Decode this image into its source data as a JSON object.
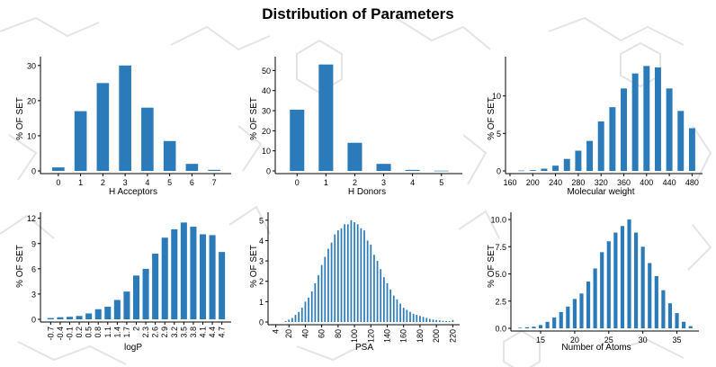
{
  "title": "Distribution of Parameters",
  "colors": {
    "bar": "#2b7bba",
    "axis": "#000000",
    "background_motif": "#e2e2e2"
  },
  "chart_data": [
    {
      "type": "bar",
      "xlabel": "H Acceptors",
      "ylabel": "% OF SET",
      "x": [
        0,
        1,
        2,
        3,
        4,
        5,
        6,
        7
      ],
      "values": [
        1,
        17,
        25,
        30,
        18,
        8.5,
        2,
        0.3
      ],
      "ylim": [
        0,
        32
      ],
      "yticks": [
        0,
        10,
        20,
        30
      ],
      "xticks": [
        0,
        1,
        2,
        3,
        4,
        5,
        6,
        7
      ],
      "xlim": [
        -0.6,
        7.6
      ],
      "barw": 0.55,
      "xtick_rotate": false,
      "grid": false
    },
    {
      "type": "bar",
      "xlabel": "H Donors",
      "ylabel": "% OF SET",
      "x": [
        0,
        1,
        2,
        3,
        4,
        5
      ],
      "values": [
        30.5,
        53,
        14,
        3.5,
        0.5,
        0.1
      ],
      "ylim": [
        0,
        56
      ],
      "yticks": [
        0,
        10,
        20,
        30,
        40,
        50
      ],
      "xticks": [
        0,
        1,
        2,
        3,
        4,
        5
      ],
      "xlim": [
        -0.6,
        5.6
      ],
      "barw": 0.5,
      "xtick_rotate": false,
      "grid": false
    },
    {
      "type": "bar",
      "xlabel": "Molecular weight",
      "ylabel": "% OF SET",
      "x": [
        180,
        200,
        220,
        240,
        260,
        280,
        300,
        320,
        340,
        360,
        380,
        400,
        420,
        440,
        460,
        480
      ],
      "values": [
        0.05,
        0.1,
        0.3,
        0.7,
        1.6,
        2.7,
        4.0,
        6.6,
        8.5,
        11,
        13,
        14,
        13.8,
        11,
        8,
        5.7
      ],
      "ylim": [
        0,
        15
      ],
      "yticks": [
        0,
        5,
        10
      ],
      "xticks": [
        160,
        200,
        240,
        280,
        320,
        360,
        400,
        440,
        480
      ],
      "xlim": [
        160,
        492
      ],
      "barw": 11,
      "xtick_rotate": false,
      "grid": false
    },
    {
      "type": "bar",
      "xlabel": "logP",
      "ylabel": "% OF SET",
      "x": [
        -0.7,
        -0.4,
        -0.1,
        0.2,
        0.5,
        0.8,
        1.1,
        1.4,
        1.7,
        2.0,
        2.3,
        2.6,
        2.9,
        3.2,
        3.5,
        3.8,
        4.1,
        4.4,
        4.7
      ],
      "values": [
        0.15,
        0.25,
        0.3,
        0.4,
        0.7,
        1.2,
        1.5,
        2.3,
        3.3,
        5.2,
        6.0,
        7.8,
        9.7,
        10.7,
        11.5,
        11.0,
        10.1,
        10.0,
        8.0
      ],
      "ylim": [
        0,
        12.5
      ],
      "yticks": [
        0,
        3,
        6,
        9,
        12
      ],
      "xticks": [
        "-0.7",
        "-0.4",
        "-0.1",
        "0.2",
        "0.5",
        "0.8",
        "1.1",
        "1.4",
        "1.7",
        "2",
        "2.3",
        "2.6",
        "2.9",
        "3.2",
        "3.5",
        "3.8",
        "4.1",
        "4.4",
        "4.7"
      ],
      "xlim": [
        -0.88,
        4.88
      ],
      "barw": 0.2,
      "xtick_rotate": true,
      "grid": false
    },
    {
      "type": "bar",
      "xlabel": "PSA",
      "ylabel": "% OF SET",
      "x": [
        16,
        20,
        24,
        28,
        32,
        36,
        40,
        44,
        48,
        52,
        56,
        60,
        64,
        68,
        72,
        76,
        80,
        84,
        88,
        92,
        96,
        100,
        104,
        108,
        112,
        116,
        120,
        124,
        128,
        132,
        136,
        140,
        144,
        148,
        152,
        156,
        160,
        164,
        168,
        172,
        176,
        180,
        184,
        188,
        192,
        196,
        200,
        204,
        208,
        212,
        216,
        220
      ],
      "values": [
        0.05,
        0.12,
        0.2,
        0.35,
        0.5,
        0.7,
        1.0,
        1.2,
        1.5,
        1.9,
        2.3,
        2.8,
        3.2,
        3.6,
        3.9,
        4.3,
        4.5,
        4.6,
        4.8,
        4.8,
        5.0,
        4.9,
        4.8,
        4.6,
        4.5,
        4.0,
        3.8,
        3.3,
        3.0,
        2.6,
        2.2,
        1.9,
        1.6,
        1.3,
        1.1,
        0.9,
        0.7,
        0.6,
        0.5,
        0.4,
        0.35,
        0.3,
        0.25,
        0.2,
        0.15,
        0.12,
        0.1,
        0.08,
        0.06,
        0.05,
        0.04,
        0.1
      ],
      "ylim": [
        0,
        5.3
      ],
      "yticks": [
        0,
        1,
        2,
        3,
        4,
        5
      ],
      "xticks": [
        "4",
        "20",
        "40",
        "60",
        "80",
        "100",
        "120",
        "140",
        "160",
        "180",
        "200",
        "220"
      ],
      "xtick_values": [
        4,
        20,
        40,
        60,
        80,
        100,
        120,
        140,
        160,
        180,
        200,
        220
      ],
      "xlim": [
        0,
        224
      ],
      "barw": 1.9,
      "xtick_rotate": true,
      "grid": false
    },
    {
      "type": "bar",
      "xlabel": "Number of Atoms",
      "ylabel": "% OF SET",
      "x": [
        12,
        13,
        14,
        15,
        16,
        17,
        18,
        19,
        20,
        21,
        22,
        23,
        24,
        25,
        26,
        27,
        28,
        29,
        30,
        31,
        32,
        33,
        34,
        35,
        36,
        37
      ],
      "values": [
        0.05,
        0.1,
        0.15,
        0.3,
        0.6,
        1.0,
        1.5,
        2.0,
        2.7,
        3.2,
        4.3,
        5.5,
        7.0,
        8.0,
        8.8,
        9.4,
        10.0,
        8.8,
        7.5,
        6.0,
        4.8,
        3.5,
        2.3,
        1.4,
        0.6,
        0.2
      ],
      "ylim": [
        0,
        10.5
      ],
      "yticks": [
        "0.0",
        "2.5",
        "5.0",
        "7.5",
        "10.0"
      ],
      "ytick_values": [
        0,
        2.5,
        5,
        7.5,
        10
      ],
      "xticks": [
        15,
        20,
        25,
        30,
        35
      ],
      "xlim": [
        11.3,
        37.7
      ],
      "barw": 0.55,
      "xtick_rotate": false,
      "grid": false
    }
  ]
}
